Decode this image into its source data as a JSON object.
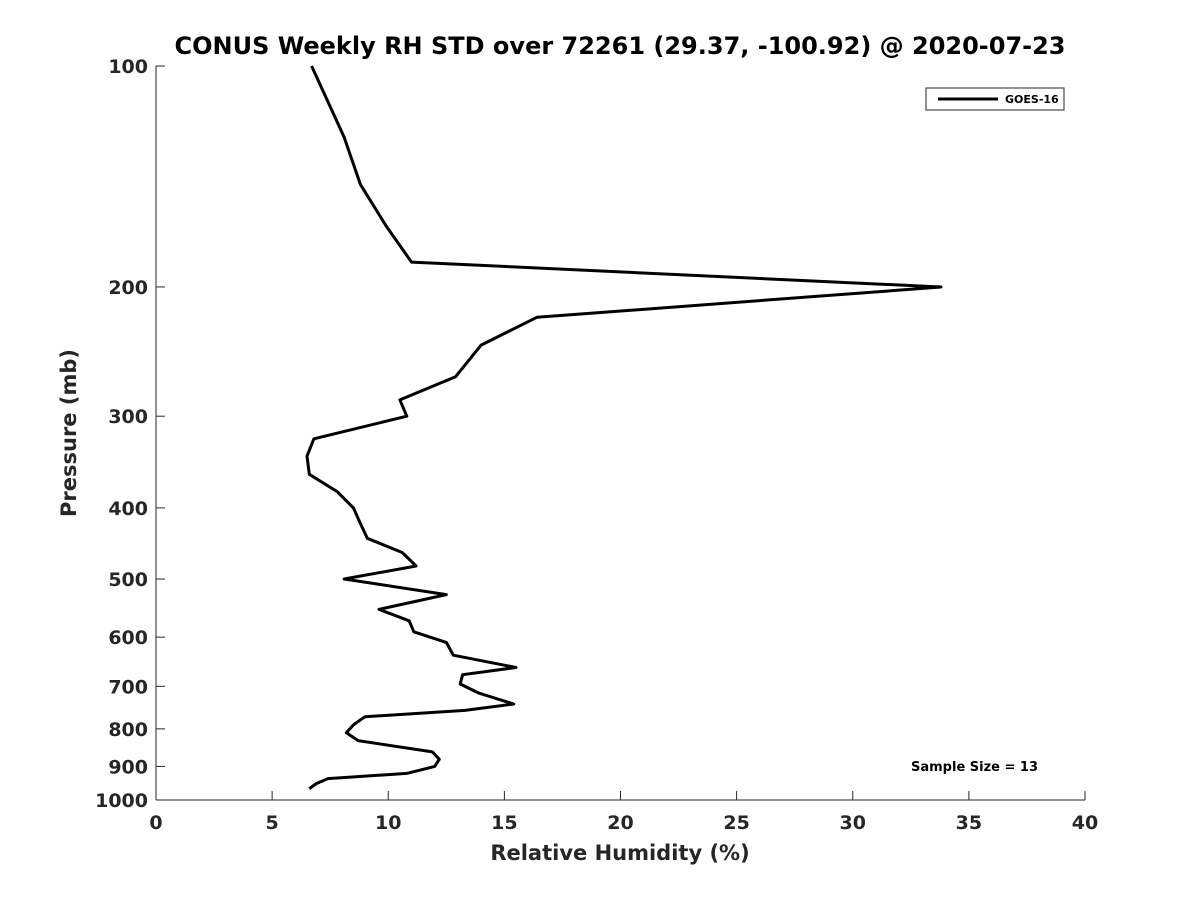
{
  "chart_data": {
    "type": "line",
    "title": "CONUS Weekly RH STD over 72261 (29.37, -100.92) @ 2020-07-23",
    "xlabel": "Relative Humidity (%)",
    "ylabel": "Pressure (mb)",
    "xlim": [
      0,
      40
    ],
    "ylim": [
      100,
      1000
    ],
    "yscale": "log",
    "y_reversed": true,
    "x_ticks": [
      0,
      5,
      10,
      15,
      20,
      25,
      30,
      35,
      40
    ],
    "y_ticks": [
      100,
      200,
      300,
      400,
      500,
      600,
      700,
      800,
      900,
      1000
    ],
    "legend_position": "top-right",
    "annotation": "Sample Size = 13",
    "series": [
      {
        "name": "GOES-16",
        "color": "#000000",
        "x": [
          6.7,
          7.3,
          8.1,
          8.8,
          9.9,
          11.0,
          33.8,
          16.4,
          14.0,
          12.9,
          10.5,
          10.8,
          6.8,
          6.5,
          6.6,
          7.8,
          8.5,
          8.8,
          9.1,
          10.6,
          11.2,
          8.1,
          12.5,
          9.6,
          10.9,
          11.1,
          12.5,
          12.8,
          15.5,
          13.2,
          13.1,
          13.9,
          15.4,
          13.3,
          9.0,
          8.5,
          8.2,
          8.7,
          11.9,
          12.2,
          12.0,
          10.8,
          7.4,
          6.9,
          6.6
        ],
        "y": [
          100,
          110,
          125,
          145,
          165,
          185,
          200,
          220,
          240,
          265,
          285,
          300,
          322,
          340,
          360,
          380,
          400,
          420,
          440,
          460,
          480,
          500,
          525,
          550,
          570,
          590,
          610,
          635,
          660,
          675,
          695,
          715,
          740,
          755,
          770,
          790,
          810,
          830,
          860,
          880,
          900,
          920,
          935,
          950,
          965
        ]
      }
    ]
  }
}
